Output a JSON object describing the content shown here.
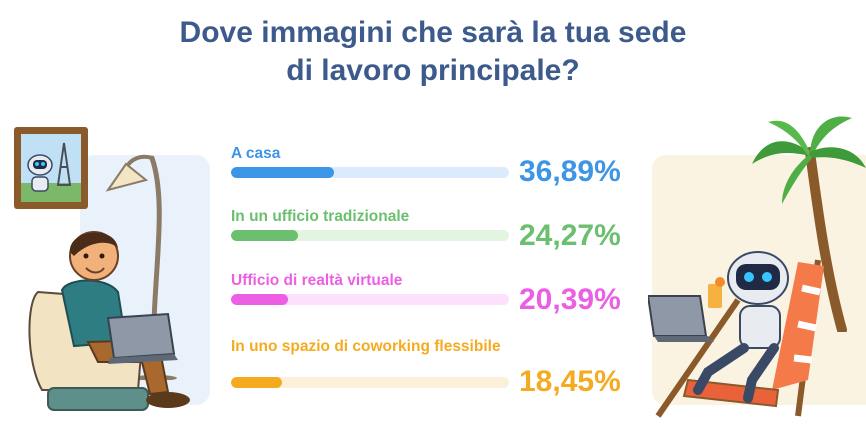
{
  "title_lines": [
    "Dove immagini che sarà la tua sede",
    "di lavoro principale?"
  ],
  "chart_data": {
    "type": "bar",
    "orientation": "horizontal",
    "title": "Dove immagini che sarà la tua sede di lavoro principale?",
    "categories": [
      "A casa",
      "In un ufficio tradizionale",
      "Ufficio di realtà virtuale",
      "In uno spazio di coworking flessibile"
    ],
    "values": [
      36.89,
      24.27,
      20.39,
      18.45
    ],
    "value_labels": [
      "36,89%",
      "24,27%",
      "20,39%",
      "18,45%"
    ],
    "unit": "%",
    "xlim": [
      0,
      100
    ],
    "colors": [
      "#3d95e6",
      "#6bbf6f",
      "#ec5fe5",
      "#f5ab20"
    ],
    "track_colors": [
      "#dcebfb",
      "#e1f5e1",
      "#fbe1fb",
      "#fcf0da"
    ],
    "grid": false,
    "legend": "none"
  },
  "illustrations": {
    "left": [
      "framed-picture-robot-eiffel",
      "floor-lamp",
      "man-armchair-laptop"
    ],
    "right": [
      "palm-tree",
      "robot-deck-chair-laptop"
    ]
  }
}
